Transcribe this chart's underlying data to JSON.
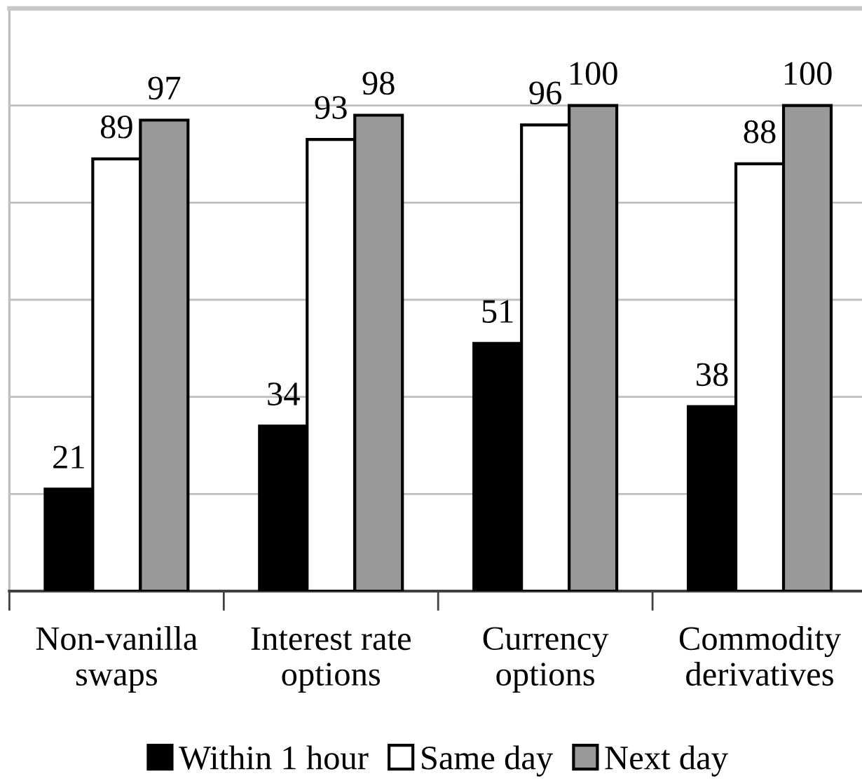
{
  "chart_data": {
    "type": "bar",
    "categories": [
      "Non-vanilla\nswaps",
      "Interest rate\noptions",
      "Currency\noptions",
      "Commodity\nderivatives"
    ],
    "series": [
      {
        "name": "Within 1 hour",
        "color": "#000000",
        "values": [
          21,
          34,
          51,
          38
        ]
      },
      {
        "name": "Same day",
        "color": "#ffffff",
        "values": [
          89,
          93,
          96,
          88
        ]
      },
      {
        "name": "Next day",
        "color": "#999999",
        "values": [
          97,
          98,
          100,
          100
        ]
      }
    ],
    "ylim": [
      0,
      120
    ],
    "yticks": [
      {
        "value": 0,
        "label": null
      },
      {
        "value": 20,
        "label": null
      },
      {
        "value": 40,
        "label": null
      },
      {
        "value": 60,
        "label": null
      },
      {
        "value": 80,
        "label": null
      },
      {
        "value": 100,
        "label": null
      },
      {
        "value": 120,
        "label": null
      }
    ],
    "grid": "y",
    "legend": "bottom",
    "data_labels": true,
    "tick_labels": "x"
  }
}
